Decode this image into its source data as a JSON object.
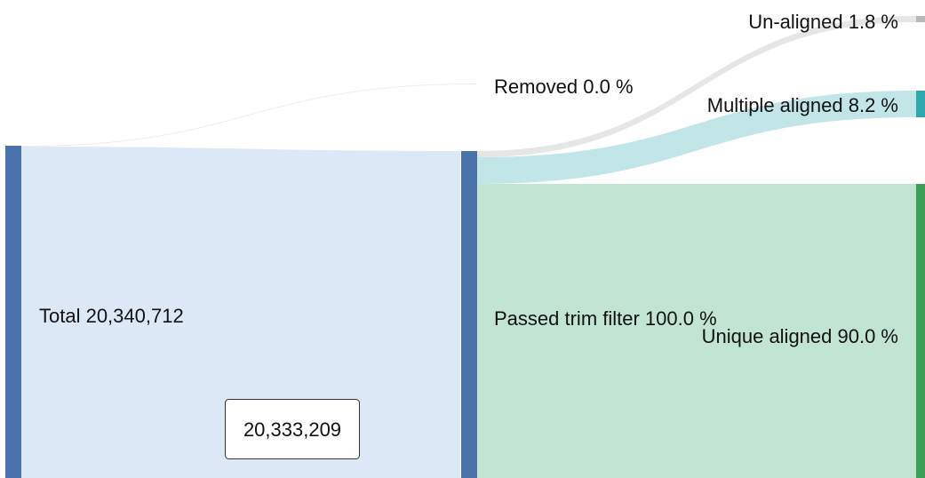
{
  "sankey": {
    "nodes": {
      "total": {
        "label": "Total 20,340,712",
        "color": "#4a72ab"
      },
      "removed": {
        "label": "Removed 0.0 %"
      },
      "passed": {
        "label": "Passed trim filter 100.0 %",
        "color": "#4a72ab"
      },
      "unaligned": {
        "label": "Un-aligned 1.8 %",
        "color": "#b8b8b8"
      },
      "multiple": {
        "label": "Multiple aligned 8.2 %",
        "color": "#2ea8ad"
      },
      "unique": {
        "label": "Unique aligned 90.0 %",
        "color": "#3a9e57"
      }
    },
    "links": {
      "total_removed": {
        "color": "#ececec"
      },
      "total_passed": {
        "color": "#dde8f6"
      },
      "passed_unaligned": {
        "color": "#e6e6e6"
      },
      "passed_multiple": {
        "color": "#c2e5e8"
      },
      "passed_unique": {
        "color": "#c2e4d2"
      }
    },
    "tooltip": {
      "value": "20,333,209"
    }
  }
}
